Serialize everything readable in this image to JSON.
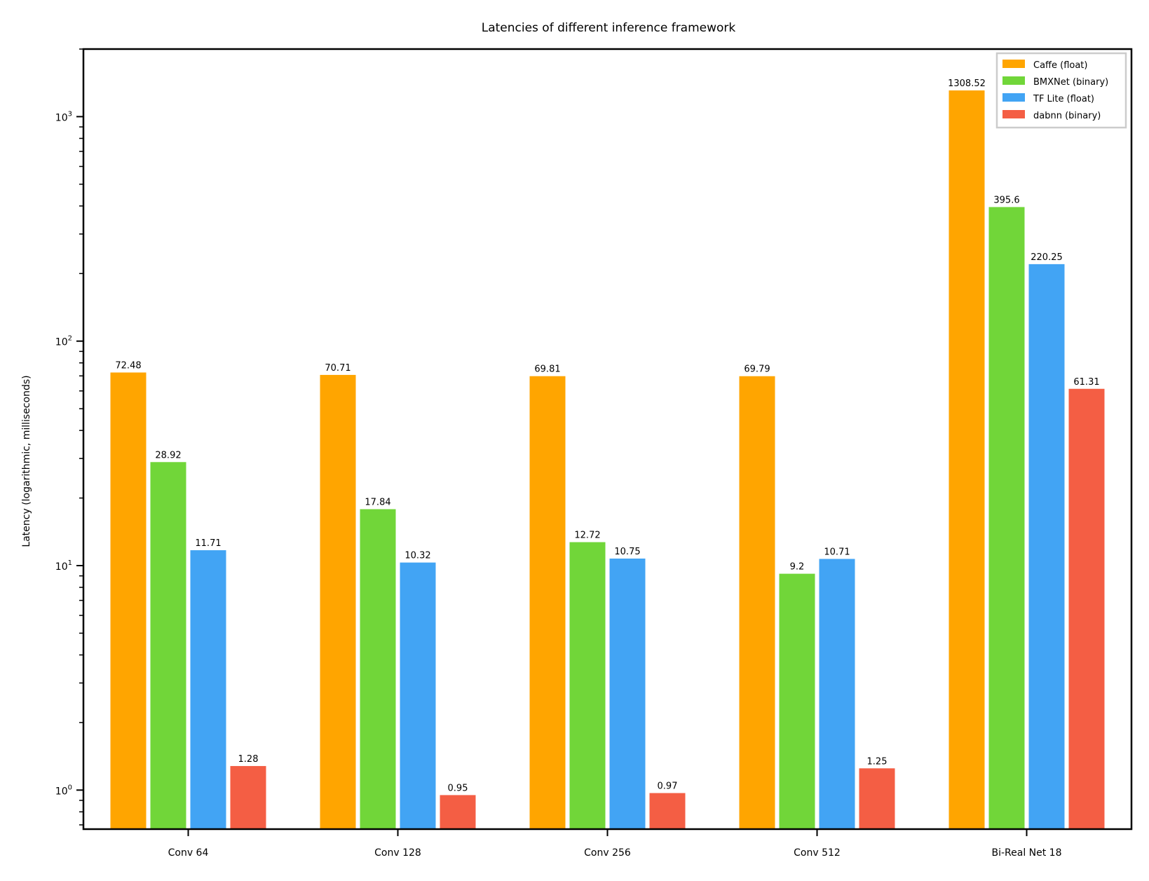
{
  "chart_data": {
    "type": "bar",
    "title": "Latencies of different inference framework",
    "xlabel": "",
    "ylabel": "Latency (logarithmic, milliseconds)",
    "yscale": "log",
    "ylim": [
      0.67,
      2000
    ],
    "categories": [
      "Conv 64",
      "Conv 128",
      "Conv 256",
      "Conv 512",
      "Bi-Real Net 18"
    ],
    "series": [
      {
        "name": "Caffe (float)",
        "color": "#FFA500",
        "values": [
          72.48,
          70.71,
          69.81,
          69.79,
          1308.52
        ],
        "labels": [
          "72.48",
          "70.71",
          "69.81",
          "69.79",
          "1308.52"
        ]
      },
      {
        "name": "BMXNet (binary)",
        "color": "#71D639",
        "values": [
          28.92,
          17.84,
          12.72,
          9.2,
          395.6
        ],
        "labels": [
          "28.92",
          "17.84",
          "12.72",
          "9.2",
          "395.6"
        ]
      },
      {
        "name": "TF Lite (float)",
        "color": "#42A4F4",
        "values": [
          11.71,
          10.32,
          10.75,
          10.71,
          220.25
        ],
        "labels": [
          "11.71",
          "10.32",
          "10.75",
          "10.71",
          "220.25"
        ]
      },
      {
        "name": "dabnn (binary)",
        "color": "#F45E44",
        "values": [
          1.28,
          0.95,
          0.97,
          1.25,
          61.31
        ],
        "labels": [
          "1.28",
          "0.95",
          "0.97",
          "1.25",
          "61.31"
        ]
      }
    ],
    "yticks": [
      {
        "value": 1,
        "base": "10",
        "exp": "0"
      },
      {
        "value": 10,
        "base": "10",
        "exp": "1"
      },
      {
        "value": 100,
        "base": "10",
        "exp": "2"
      },
      {
        "value": 1000,
        "base": "10",
        "exp": "3"
      }
    ],
    "legend": "top-right",
    "grid": false
  }
}
